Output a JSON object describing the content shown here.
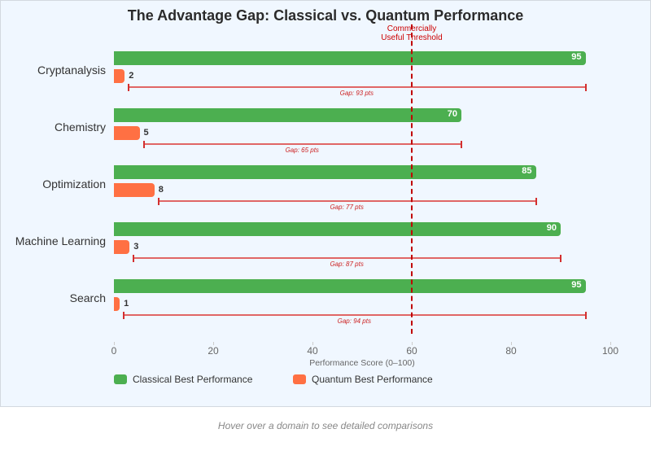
{
  "chart_data": {
    "type": "bar",
    "orientation": "horizontal",
    "title": "The Advantage Gap: Classical vs. Quantum Performance",
    "xlabel": "Performance Score (0–100)",
    "ylabel": "",
    "xlim": [
      0,
      100
    ],
    "x_ticks": [
      0,
      20,
      40,
      60,
      80,
      100
    ],
    "categories": [
      "Cryptanalysis",
      "Chemistry",
      "Optimization",
      "Machine Learning",
      "Search"
    ],
    "series": [
      {
        "name": "Classical Best Performance",
        "color": "#4caf50",
        "values": [
          95,
          70,
          85,
          90,
          95
        ]
      },
      {
        "name": "Quantum Best Performance",
        "color": "#ff7043",
        "values": [
          2,
          5,
          8,
          3,
          1
        ]
      }
    ],
    "gaps": [
      93,
      65,
      77,
      87,
      94
    ],
    "gap_labels": [
      "Gap: 93 pts",
      "Gap: 65 pts",
      "Gap: 77 pts",
      "Gap: 87 pts",
      "Gap: 94 pts"
    ],
    "annotations": [
      {
        "type": "vline",
        "x": 60,
        "label": "Commercially Useful Threshold",
        "color": "#cc0000",
        "style": "dashed"
      }
    ],
    "legend_position": "bottom-left",
    "grid": false
  },
  "threshold": {
    "line1": "Commercially",
    "line2": "Useful Threshold"
  },
  "footnote": "Hover over a domain to see detailed comparisons"
}
